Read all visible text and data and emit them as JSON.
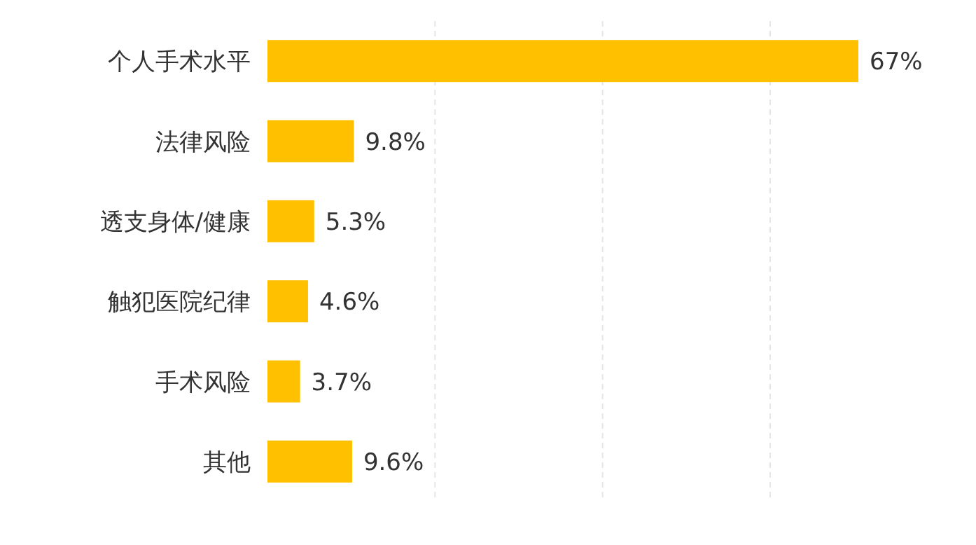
{
  "chart_data": {
    "type": "bar",
    "orientation": "horizontal",
    "categories": [
      "个人手术水平",
      "法律风险",
      "透支身体/健康",
      "触犯医院纪律",
      "手术风险",
      "其他"
    ],
    "values": [
      67,
      9.8,
      5.3,
      4.6,
      3.7,
      9.6
    ],
    "value_labels": [
      "67%",
      "9.8%",
      "5.3%",
      "4.6%",
      "3.7%",
      "9.6%"
    ],
    "color": "#ffc000",
    "xticks": [
      {
        "value": 19,
        "label": null
      },
      {
        "value": 38,
        "label": null
      },
      {
        "value": 57,
        "label": null
      }
    ],
    "grid": "x"
  }
}
